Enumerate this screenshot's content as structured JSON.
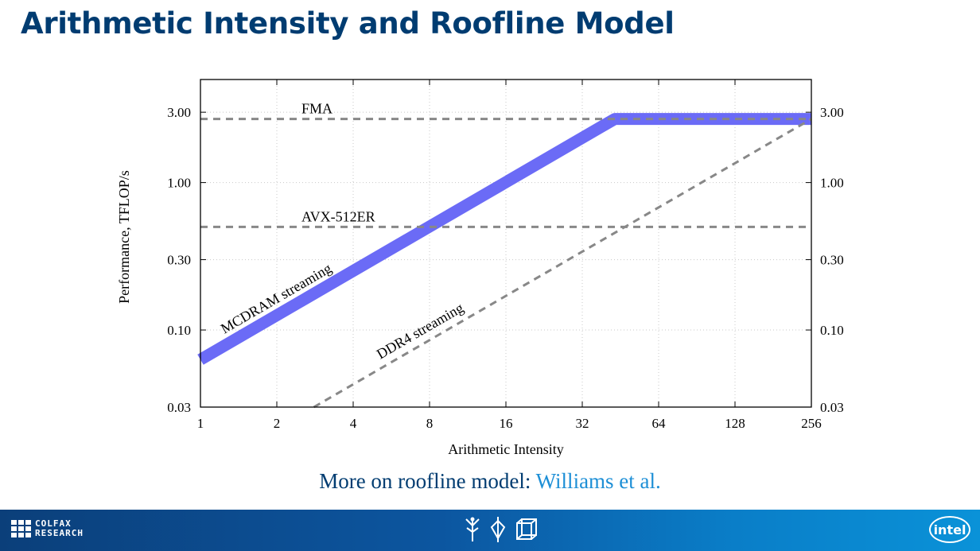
{
  "slide": {
    "title": "Arithmetic Intensity and Roofline Model",
    "caption_prefix": "More on roofline model: ",
    "caption_link": "Williams et al."
  },
  "footer": {
    "left_logo_line1": "COLFAX",
    "left_logo_line2": "RESEARCH",
    "right_logo": "intel",
    "center_icons": [
      "tree-icon",
      "crystal-icon",
      "cube-icon"
    ]
  },
  "colors": {
    "title": "#003c71",
    "caption_link": "#1d8fd6",
    "roofline": "#6b6bf6",
    "reference_lines": "#888888",
    "footer_start": "#0b3f7a",
    "footer_end": "#0a92d8"
  },
  "chart_data": {
    "type": "line",
    "xlabel": "Arithmetic Intensity",
    "ylabel": "Performance, TFLOP/s",
    "x_scale": "log2",
    "y_scale": "log",
    "xlim": [
      1,
      256
    ],
    "ylim": [
      0.03,
      5.0
    ],
    "x_ticks": [
      1,
      2,
      4,
      8,
      16,
      32,
      64,
      128,
      256
    ],
    "x_tick_labels": [
      "1",
      "2",
      "4",
      "8",
      "16",
      "32",
      "64",
      "128",
      "256"
    ],
    "y_ticks": [
      0.03,
      0.1,
      0.3,
      1.0,
      3.0
    ],
    "y_tick_labels": [
      "0.03",
      "0.10",
      "0.30",
      "1.00",
      "3.00"
    ],
    "y_ticks_right": true,
    "grid": true,
    "series": [
      {
        "label": "MCDRAM streaming",
        "style": "thick-solid",
        "x": [
          1,
          43,
          256
        ],
        "y": [
          0.063,
          2.7,
          2.7
        ]
      },
      {
        "label": "FMA",
        "style": "dashed",
        "x": [
          1,
          256
        ],
        "y": [
          2.7,
          2.7
        ]
      },
      {
        "label": "AVX-512ER",
        "style": "dashed",
        "x": [
          1,
          256
        ],
        "y": [
          0.5,
          0.5
        ]
      },
      {
        "label": "DDR4 streaming",
        "style": "dashed",
        "x": [
          2.8,
          256
        ],
        "y": [
          0.03,
          2.7
        ]
      }
    ],
    "annotations": [
      "FMA",
      "AVX-512ER",
      "MCDRAM streaming",
      "DDR4 streaming"
    ]
  }
}
